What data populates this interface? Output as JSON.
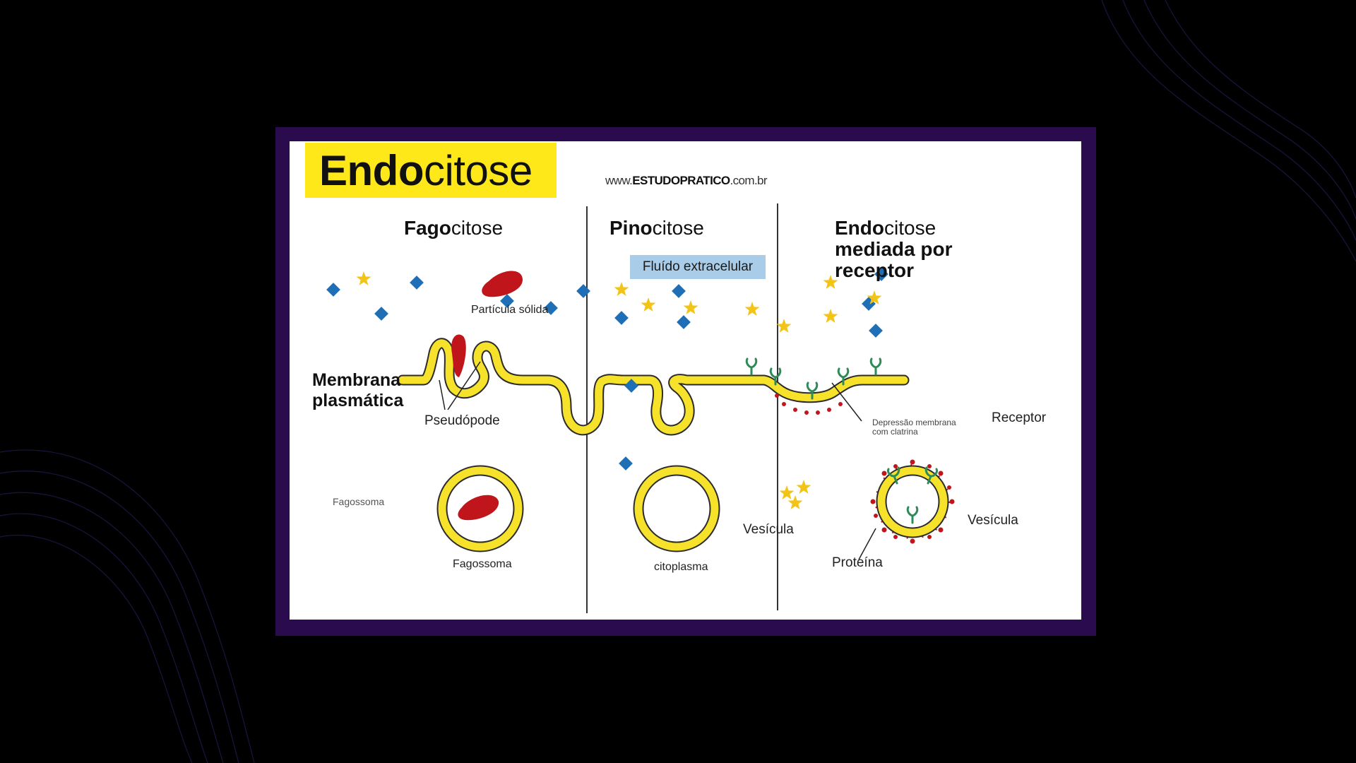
{
  "title": {
    "bold": "Endo",
    "rest": "citose"
  },
  "website": {
    "prefix": "www.",
    "brand": "ESTUDOPRATICO",
    "suffix": ".com.br"
  },
  "sections": {
    "fagocitose": {
      "bold": "Fago",
      "rest": "citose"
    },
    "pinocitose": {
      "bold": "Pino",
      "rest": "citose"
    },
    "receptor_mediated": {
      "bold": "Endo",
      "rest": "citose",
      "line2": "mediada por",
      "line3": "receptor"
    }
  },
  "labels": {
    "particula_solida": "Partícula sólida",
    "membrana_line1": "Membrana",
    "membrana_line2": "plasmática",
    "pseudopode": "Pseudópode",
    "fagossoma_left": "Fagossoma",
    "fagossoma_bottom": "Fagossoma",
    "fluido_extracelular": "Fluído extracelular",
    "vesicula_pino": "Vesícula",
    "citoplasma": "citoplasma",
    "receptor": "Receptor",
    "depressao_line1": "Depressão membrana",
    "depressao_line2": "com clatrina",
    "vesicula_receptor": "Vesícula",
    "proteina": "Proteína"
  },
  "colors": {
    "background": "#000000",
    "frame": "#2a0b4d",
    "title_highlight": "#ffe81a",
    "membrane": "#f6e22a",
    "membrane_outline": "#2b2b2b",
    "particle": "#c0161b",
    "molecule_square": "#1e6fb5",
    "molecule_star": "#f2c418",
    "receptor": "#2e8b57",
    "clathrin": "#c0161b",
    "fluid_box": "#a9cde8"
  }
}
